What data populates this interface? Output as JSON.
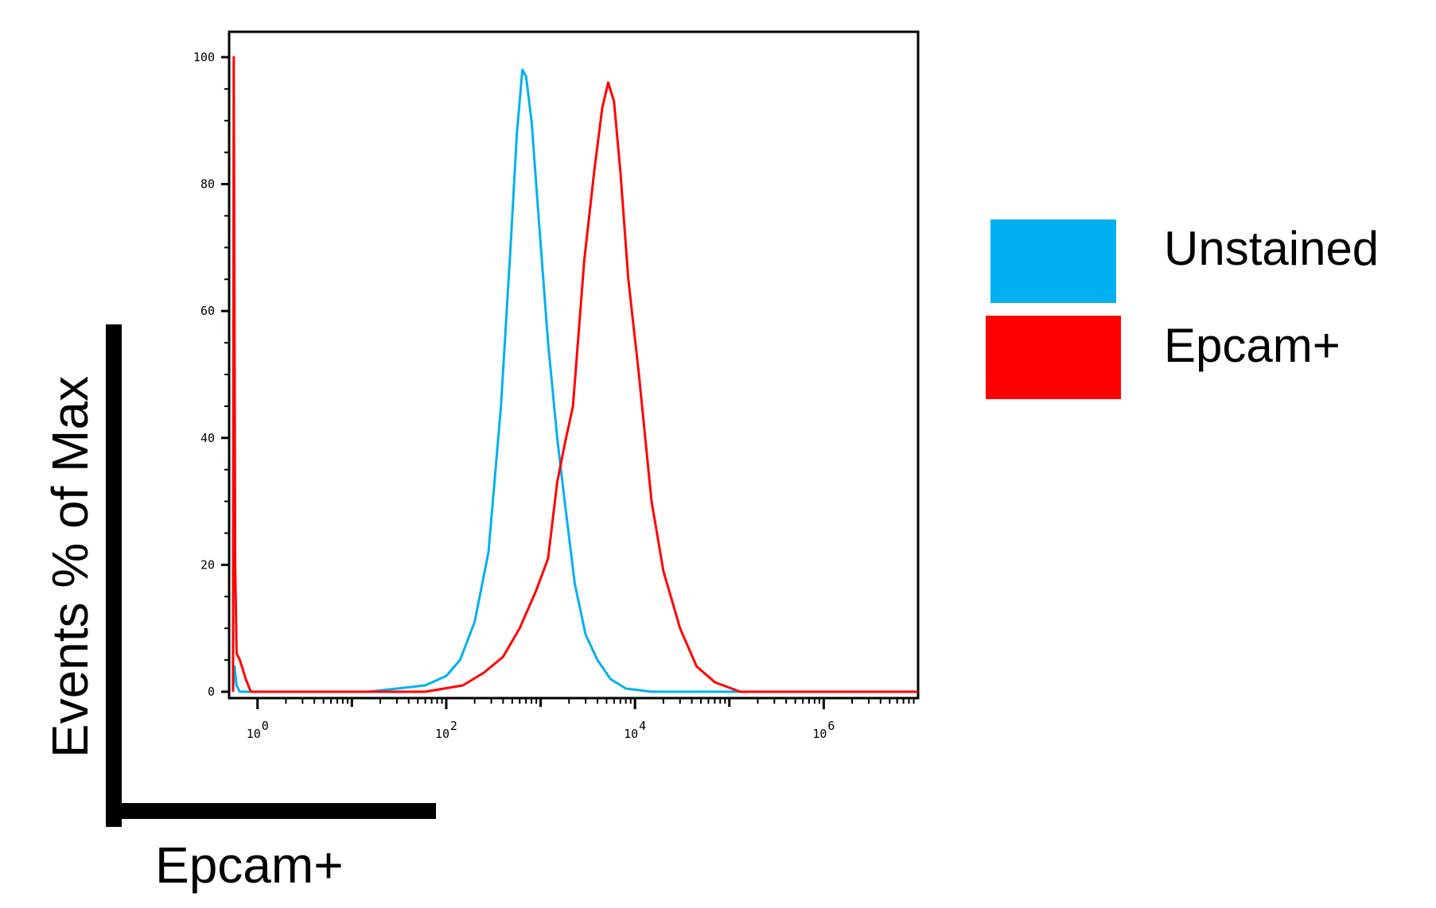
{
  "chart_data": {
    "type": "line",
    "title": "",
    "xlabel": "Epcam+",
    "ylabel": "Events % of Max",
    "x_scale": "log",
    "xlim": [
      0.5,
      10000000
    ],
    "ylim": [
      -1,
      104
    ],
    "x_ticks": [
      {
        "value": 1,
        "base": "10",
        "exp": "0"
      },
      {
        "value": 100,
        "base": "10",
        "exp": "2"
      },
      {
        "value": 10000,
        "base": "10",
        "exp": "4"
      },
      {
        "value": 1000000,
        "base": "10",
        "exp": "6"
      }
    ],
    "y_ticks": [
      "0",
      "20",
      "40",
      "60",
      "80",
      "100"
    ],
    "y_tick_values": [
      0,
      20,
      40,
      60,
      80,
      100
    ],
    "grid": false,
    "legend_position": "right",
    "series": [
      {
        "name": "Unstained",
        "color": "#00b0f0",
        "points": [
          [
            0.55,
            0
          ],
          [
            0.57,
            4
          ],
          [
            0.6,
            1
          ],
          [
            0.65,
            0
          ],
          [
            15,
            0
          ],
          [
            30,
            0.5
          ],
          [
            60,
            1
          ],
          [
            100,
            2.5
          ],
          [
            140,
            5
          ],
          [
            200,
            11
          ],
          [
            280,
            22
          ],
          [
            380,
            45
          ],
          [
            480,
            70
          ],
          [
            560,
            88
          ],
          [
            640,
            98
          ],
          [
            700,
            97
          ],
          [
            800,
            90
          ],
          [
            950,
            75
          ],
          [
            1200,
            55
          ],
          [
            1500,
            40
          ],
          [
            1800,
            30
          ],
          [
            2300,
            17
          ],
          [
            3000,
            9
          ],
          [
            4000,
            5
          ],
          [
            5500,
            2
          ],
          [
            8000,
            0.5
          ],
          [
            15000,
            0
          ],
          [
            10000000,
            0
          ]
        ]
      },
      {
        "name": "Epcam+",
        "color": "#ff0000",
        "points": [
          [
            0.55,
            0
          ],
          [
            0.56,
            100
          ],
          [
            0.58,
            20
          ],
          [
            0.6,
            6
          ],
          [
            0.65,
            5
          ],
          [
            0.75,
            2
          ],
          [
            0.85,
            0
          ],
          [
            60,
            0
          ],
          [
            150,
            1
          ],
          [
            250,
            3
          ],
          [
            400,
            5.5
          ],
          [
            600,
            10
          ],
          [
            900,
            16
          ],
          [
            1200,
            21
          ],
          [
            1500,
            33
          ],
          [
            1800,
            39
          ],
          [
            2200,
            45
          ],
          [
            2900,
            68
          ],
          [
            3700,
            82
          ],
          [
            4500,
            92
          ],
          [
            5200,
            96
          ],
          [
            6000,
            93
          ],
          [
            7000,
            82
          ],
          [
            8500,
            65
          ],
          [
            11000,
            50
          ],
          [
            15000,
            30
          ],
          [
            20000,
            19
          ],
          [
            30000,
            10
          ],
          [
            45000,
            4
          ],
          [
            70000,
            1.5
          ],
          [
            130000,
            0
          ],
          [
            10000000,
            0
          ]
        ]
      }
    ]
  },
  "legend": [
    {
      "label": "Unstained",
      "color": "#00b0f0"
    },
    {
      "label": "Epcam+",
      "color": "#ff0000"
    }
  ]
}
